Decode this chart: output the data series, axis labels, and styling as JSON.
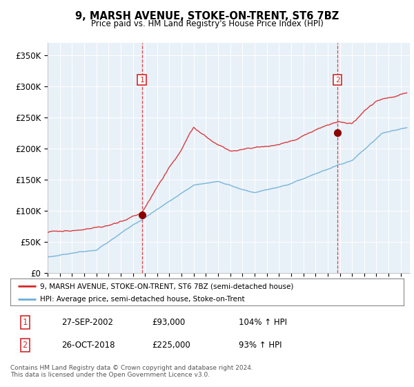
{
  "title": "9, MARSH AVENUE, STOKE-ON-TRENT, ST6 7BZ",
  "subtitle": "Price paid vs. HM Land Registry's House Price Index (HPI)",
  "background_color": "#e8f0f8",
  "ylabel_ticks": [
    "£0",
    "£50K",
    "£100K",
    "£150K",
    "£200K",
    "£250K",
    "£300K",
    "£350K"
  ],
  "ytick_values": [
    0,
    50000,
    100000,
    150000,
    200000,
    250000,
    300000,
    350000
  ],
  "ylim": [
    0,
    370000
  ],
  "xlim_start": 1995.0,
  "xlim_end": 2024.75,
  "legend_entry1": "9, MARSH AVENUE, STOKE-ON-TRENT, ST6 7BZ (semi-detached house)",
  "legend_entry2": "HPI: Average price, semi-detached house, Stoke-on-Trent",
  "sale1_date": 2002.74,
  "sale1_price": 93000,
  "sale1_label": "1",
  "sale2_date": 2018.81,
  "sale2_price": 225000,
  "sale2_label": "2",
  "transaction_table": [
    [
      "1",
      "27-SEP-2002",
      "£93,000",
      "104% ↑ HPI"
    ],
    [
      "2",
      "26-OCT-2018",
      "£225,000",
      "93% ↑ HPI"
    ]
  ],
  "footer": "Contains HM Land Registry data © Crown copyright and database right 2024.\nThis data is licensed under the Open Government Licence v3.0.",
  "hpi_color": "#6baed6",
  "price_color": "#d62728",
  "sale_marker_color": "#8b0000",
  "vline_color": "#d62728",
  "box_color": "#d62728"
}
